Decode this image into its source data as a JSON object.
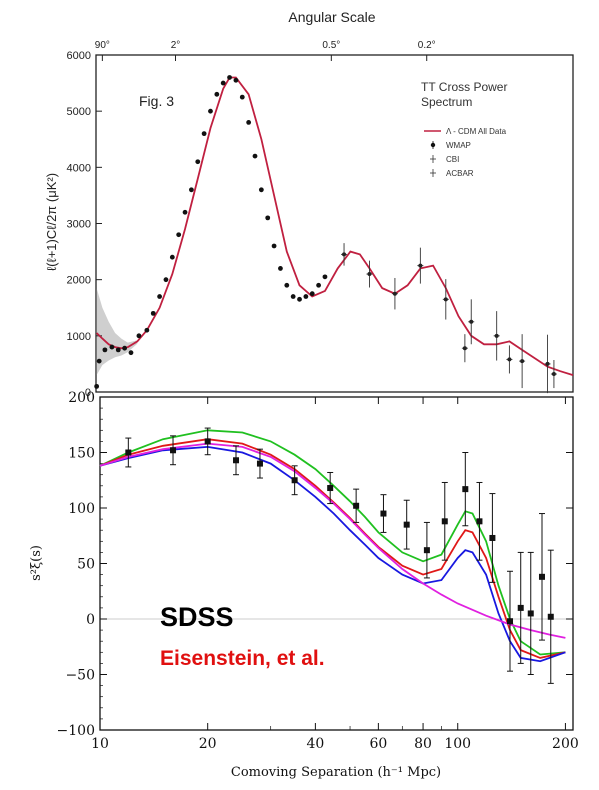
{
  "chart_data": [
    {
      "type": "line",
      "title": "Angular Scale",
      "fig_label": "Fig. 3",
      "plot_title_lines": [
        "TT Cross Power",
        "Spectrum"
      ],
      "ylabel": "ℓ(ℓ+1)Cℓ/2π (μK²)",
      "ylim": [
        0,
        6000
      ],
      "y_ticks": [
        0,
        1000,
        2000,
        3000,
        4000,
        5000,
        6000
      ],
      "xlim": [
        0,
        1500
      ],
      "top_axis_ticks": [
        {
          "label": "90°",
          "ell": 20
        },
        {
          "label": "2°",
          "ell": 250
        },
        {
          "label": "0.5°",
          "ell": 740
        },
        {
          "label": "0.2°",
          "ell": 1040
        }
      ],
      "legend": {
        "position": "top-right",
        "entries": [
          "Λ - CDM All Data",
          "WMAP",
          "CBI",
          "ACBAR"
        ]
      },
      "colors": {
        "model": "#c02040",
        "points": "#111111",
        "band": "#cfcfcf"
      },
      "series": [
        {
          "name": "Λ - CDM All Data",
          "x": [
            2,
            20,
            40,
            60,
            80,
            100,
            130,
            160,
            200,
            240,
            280,
            320,
            360,
            400,
            420,
            440,
            480,
            520,
            560,
            600,
            640,
            680,
            720,
            760,
            800,
            830,
            860,
            900,
            940,
            980,
            1020,
            1060,
            1100,
            1140,
            1180,
            1220,
            1260,
            1300,
            1340,
            1380,
            1420,
            1460,
            1500
          ],
          "y": [
            1050,
            950,
            850,
            800,
            780,
            800,
            900,
            1100,
            1500,
            2100,
            2900,
            3800,
            4700,
            5400,
            5600,
            5600,
            5300,
            4500,
            3500,
            2500,
            1900,
            1700,
            1800,
            2200,
            2500,
            2450,
            2200,
            1850,
            1750,
            1900,
            2200,
            2250,
            1850,
            1350,
            1000,
            850,
            850,
            900,
            750,
            600,
            450,
            370,
            300
          ]
        },
        {
          "name": "WMAP",
          "x": [
            2,
            10,
            28,
            50,
            70,
            90,
            110,
            135,
            160,
            180,
            200,
            220,
            240,
            260,
            280,
            300,
            320,
            340,
            360,
            380,
            400,
            420,
            440,
            460,
            480,
            500,
            520,
            540,
            560,
            580,
            600,
            620,
            640,
            660,
            680,
            700,
            720
          ],
          "y": [
            100,
            550,
            750,
            800,
            750,
            780,
            700,
            1000,
            1100,
            1400,
            1700,
            2000,
            2400,
            2800,
            3200,
            3600,
            4100,
            4600,
            5000,
            5300,
            5500,
            5600,
            5550,
            5250,
            4800,
            4200,
            3600,
            3100,
            2600,
            2200,
            1900,
            1700,
            1650,
            1700,
            1750,
            1900,
            2050
          ]
        },
        {
          "name": "CBI",
          "x": [
            780,
            860,
            940,
            1020,
            1100,
            1180,
            1260,
            1340,
            1420
          ],
          "y": [
            2450,
            2100,
            1750,
            2250,
            1650,
            1250,
            1000,
            550,
            500
          ]
        },
        {
          "name": "ACBAR",
          "x": [
            1160,
            1300,
            1440
          ],
          "y": [
            780,
            580,
            320
          ]
        }
      ]
    },
    {
      "type": "line",
      "xlabel": "Comoving Separation (h⁻¹ Mpc)",
      "ylabel": "s²ξ(s)",
      "xscale": "log",
      "xlim": [
        10,
        210
      ],
      "ylim": [
        -100,
        200
      ],
      "x_ticks": [
        10,
        20,
        40,
        60,
        80,
        100,
        200
      ],
      "y_ticks": [
        -100,
        -50,
        0,
        50,
        100,
        150,
        200
      ],
      "annotations": [
        {
          "text": "SDSS",
          "color": "#000000"
        },
        {
          "text": "Eisenstein, et al.",
          "color": "#e01010"
        }
      ],
      "colors": {
        "green": "#20c020",
        "red": "#e01818",
        "blue": "#1818e0",
        "magenta": "#e020e0"
      },
      "series": [
        {
          "color": "green",
          "x": [
            10,
            12,
            15,
            20,
            25,
            30,
            35,
            40,
            45,
            50,
            55,
            60,
            70,
            80,
            90,
            100,
            105,
            110,
            120,
            130,
            140,
            150,
            170,
            200
          ],
          "y": [
            138,
            150,
            162,
            170,
            168,
            160,
            148,
            135,
            120,
            106,
            92,
            78,
            60,
            52,
            58,
            85,
            97,
            95,
            70,
            30,
            0,
            -20,
            -32,
            -30
          ]
        },
        {
          "color": "red",
          "x": [
            10,
            12,
            15,
            20,
            25,
            30,
            35,
            40,
            45,
            50,
            55,
            60,
            70,
            80,
            90,
            100,
            105,
            110,
            120,
            130,
            140,
            150,
            170,
            200
          ],
          "y": [
            138,
            148,
            156,
            162,
            158,
            148,
            135,
            120,
            105,
            91,
            77,
            65,
            48,
            40,
            45,
            70,
            80,
            78,
            55,
            20,
            -10,
            -28,
            -35,
            -30
          ]
        },
        {
          "color": "blue",
          "x": [
            10,
            12,
            15,
            20,
            25,
            30,
            35,
            40,
            45,
            50,
            55,
            60,
            70,
            80,
            90,
            100,
            105,
            110,
            120,
            130,
            140,
            150,
            170,
            200
          ],
          "y": [
            138,
            145,
            152,
            155,
            150,
            140,
            125,
            110,
            95,
            80,
            67,
            55,
            40,
            32,
            35,
            55,
            62,
            60,
            40,
            5,
            -20,
            -35,
            -38,
            -30
          ]
        },
        {
          "color": "magenta",
          "x": [
            10,
            12,
            15,
            20,
            25,
            30,
            35,
            40,
            45,
            50,
            55,
            60,
            70,
            80,
            90,
            100,
            120,
            140,
            160,
            180,
            200
          ],
          "y": [
            138,
            146,
            153,
            158,
            155,
            146,
            133,
            118,
            104,
            90,
            76,
            64,
            45,
            32,
            22,
            14,
            3,
            -5,
            -10,
            -14,
            -17
          ]
        },
        {
          "name": "SDSS",
          "x": [
            12,
            16,
            20,
            24,
            28,
            35,
            44,
            52,
            62,
            72,
            82,
            92,
            105,
            115,
            125,
            140,
            150,
            160,
            172,
            182
          ],
          "y": [
            150,
            152,
            160,
            143,
            140,
            125,
            118,
            102,
            95,
            85,
            62,
            88,
            117,
            88,
            73,
            -2,
            10,
            5,
            38,
            2
          ],
          "err": [
            13,
            13,
            12,
            13,
            13,
            13,
            14,
            15,
            17,
            22,
            25,
            35,
            33,
            35,
            40,
            45,
            50,
            55,
            57,
            60
          ]
        }
      ]
    }
  ]
}
